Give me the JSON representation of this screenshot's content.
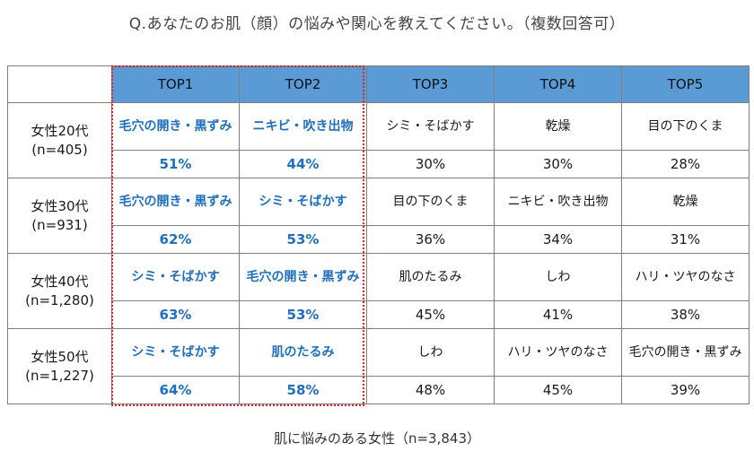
{
  "title": "Q.あなたのお肌（顔）の悩みや関心を教えてください。（複数回答可）",
  "caption": "肌に悩みのある女性（n=3,843）",
  "colors": {
    "header_bg": "#5b9bd5",
    "highlight_text": "#1f6fbf",
    "highlight_border": "#e02020"
  },
  "chart_data": {
    "type": "table",
    "columns": [
      "TOP1",
      "TOP2",
      "TOP3",
      "TOP4",
      "TOP5"
    ],
    "highlighted_columns": [
      "TOP1",
      "TOP2"
    ],
    "rows": [
      {
        "group": "女性20代",
        "n": "(n=405)",
        "items": [
          "毛穴の開き・黒ずみ",
          "ニキビ・吹き出物",
          "シミ・そばかす",
          "乾燥",
          "目の下のくま"
        ],
        "percents": [
          "51%",
          "44%",
          "30%",
          "30%",
          "28%"
        ]
      },
      {
        "group": "女性30代",
        "n": "(n=931)",
        "items": [
          "毛穴の開き・黒ずみ",
          "シミ・そばかす",
          "目の下のくま",
          "ニキビ・吹き出物",
          "乾燥"
        ],
        "percents": [
          "62%",
          "53%",
          "36%",
          "34%",
          "31%"
        ]
      },
      {
        "group": "女性40代",
        "n": "(n=1,280)",
        "items": [
          "シミ・そばかす",
          "毛穴の開き・黒ずみ",
          "肌のたるみ",
          "しわ",
          "ハリ・ツヤのなさ"
        ],
        "percents": [
          "63%",
          "53%",
          "45%",
          "41%",
          "38%"
        ]
      },
      {
        "group": "女性50代",
        "n": "(n=1,227)",
        "items": [
          "シミ・そばかす",
          "肌のたるみ",
          "しわ",
          "ハリ・ツヤのなさ",
          "毛穴の開き・黒ずみ"
        ],
        "percents": [
          "64%",
          "58%",
          "48%",
          "45%",
          "39%"
        ]
      }
    ]
  }
}
